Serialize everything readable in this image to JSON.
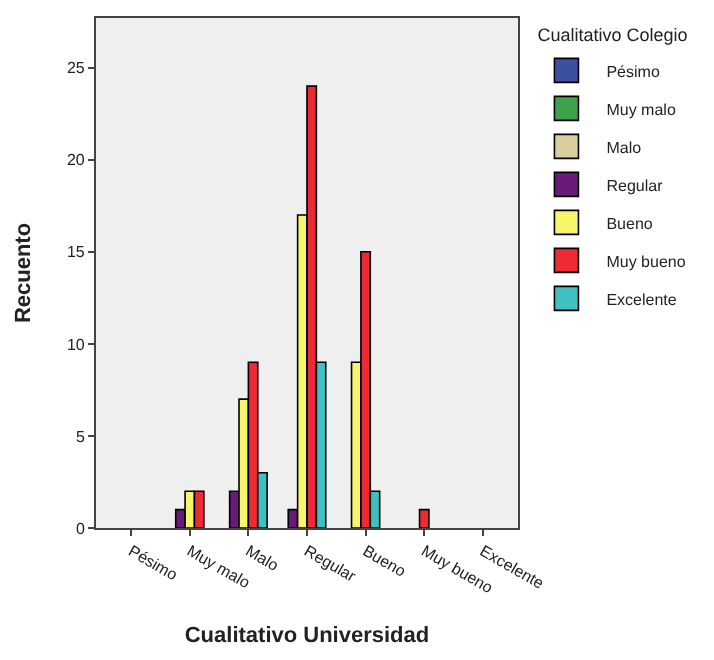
{
  "chart_data": {
    "type": "bar",
    "xlabel": "Cualitativo Universidad",
    "ylabel": "Recuento",
    "legend_title": "Cualitativo Colegio",
    "categories": [
      "Pésimo",
      "Muy malo",
      "Malo",
      "Regular",
      "Bueno",
      "Muy bueno",
      "Excelente"
    ],
    "series": [
      {
        "name": "Pésimo",
        "color": "#3d4f9f",
        "values": [
          null,
          null,
          null,
          null,
          null,
          null,
          null
        ]
      },
      {
        "name": "Muy malo",
        "color": "#3fa34d",
        "values": [
          null,
          null,
          null,
          null,
          null,
          null,
          null
        ]
      },
      {
        "name": "Malo",
        "color": "#d9cf9e",
        "values": [
          null,
          null,
          null,
          null,
          null,
          null,
          null
        ]
      },
      {
        "name": "Regular",
        "color": "#6a1b7a",
        "values": [
          null,
          1,
          2,
          1,
          null,
          null,
          null
        ]
      },
      {
        "name": "Bueno",
        "color": "#f7f56a",
        "values": [
          null,
          2,
          7,
          17,
          9,
          null,
          null
        ]
      },
      {
        "name": "Muy bueno",
        "color": "#ee2b34",
        "values": [
          null,
          2,
          9,
          24,
          15,
          1,
          null
        ]
      },
      {
        "name": "Excelente",
        "color": "#40c0c0",
        "values": [
          null,
          null,
          3,
          9,
          2,
          null,
          null
        ]
      }
    ],
    "ylim": [
      0,
      27.7
    ],
    "yticks": [
      0,
      5,
      10,
      15,
      20,
      25
    ],
    "grid": false,
    "legend": "top right"
  }
}
